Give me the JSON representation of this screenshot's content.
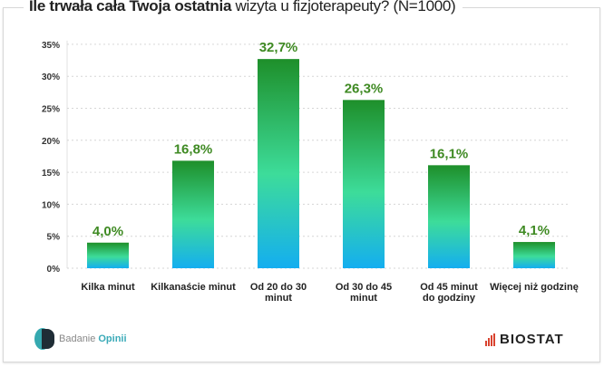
{
  "title": {
    "bold": "Ile trwała cała Twoja ostatnia",
    "rest": " wizyta u fizjoterapeuty? (N=1000)"
  },
  "chart_data": {
    "type": "bar",
    "categories": [
      [
        "Kilka minut"
      ],
      [
        "Kilkanaście minut"
      ],
      [
        "Od 20 do 30",
        "minut"
      ],
      [
        "Od 30 do 45",
        "minut"
      ],
      [
        "Od 45 minut",
        "do godziny"
      ],
      [
        "Więcej niż godzinę"
      ]
    ],
    "values": [
      4.0,
      16.8,
      32.7,
      26.3,
      16.1,
      4.1
    ],
    "data_labels": [
      "4,0%",
      "16,8%",
      "32,7%",
      "26,3%",
      "16,1%",
      "4,1%"
    ],
    "yticks": [
      0,
      5,
      10,
      15,
      20,
      25,
      30,
      35
    ],
    "ytick_labels": [
      "0%",
      "5%",
      "10%",
      "15%",
      "20%",
      "25%",
      "30%",
      "35%"
    ],
    "ylim": [
      0,
      35
    ],
    "grid": true,
    "colors": {
      "bar_top": "#1e8f2a",
      "bar_mid": "#3ddc9a",
      "bar_bottom": "#14aef0",
      "label": "#3f8a23"
    }
  },
  "logos": {
    "left_a": "Badanie",
    "left_b": "Opinii",
    "right": "BIOSTAT"
  }
}
